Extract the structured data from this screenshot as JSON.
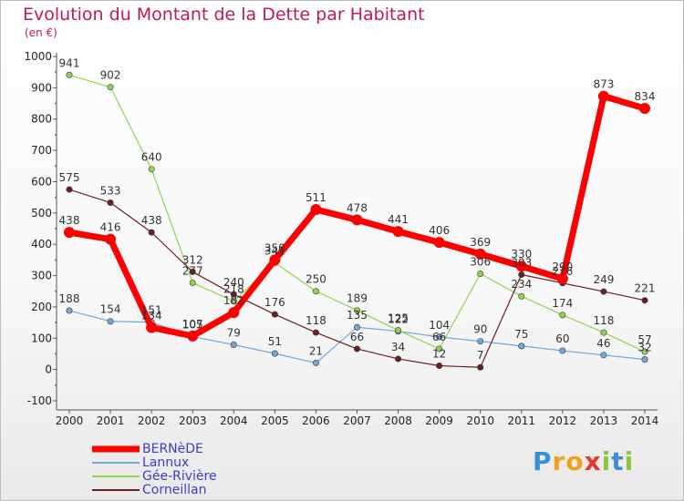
{
  "chart_data": {
    "type": "line",
    "title": "Evolution du Montant de la Dette par Habitant",
    "ylabel": "(en €)",
    "x": [
      "2000",
      "2001",
      "2002",
      "2003",
      "2004",
      "2005",
      "2006",
      "2007",
      "2008",
      "2009",
      "2010",
      "2011",
      "2012",
      "2013",
      "2014"
    ],
    "yticks": [
      "-100",
      "0",
      "100",
      "200",
      "300",
      "400",
      "500",
      "600",
      "700",
      "800",
      "900",
      "1000"
    ],
    "ylim": [
      -100,
      1000
    ],
    "grid": false,
    "legend_position": "bottom-left",
    "series": [
      {
        "name": "BERNèDE",
        "color": "#ff0000",
        "values": [
          438,
          416,
          134,
          107,
          182,
          350,
          511,
          478,
          441,
          406,
          369,
          330,
          290,
          873,
          834
        ],
        "labels": [
          "438",
          "416",
          "134",
          "107",
          "182",
          "350",
          "511",
          "478",
          "441",
          "406",
          "369",
          "330",
          "290",
          "873",
          "834"
        ]
      },
      {
        "name": "Lannux",
        "color": "#6fa8dc",
        "values": [
          188,
          154,
          151,
          105,
          79,
          51,
          21,
          135,
          122,
          104,
          90,
          75,
          60,
          46,
          32
        ],
        "labels": [
          "188",
          "154",
          "151",
          "105",
          "79",
          "51",
          "21",
          "135",
          "122",
          "104",
          "90",
          "75",
          "60",
          "46",
          "32"
        ]
      },
      {
        "name": "Gée-Rivière",
        "color": "#8fd44e",
        "values": [
          941,
          902,
          640,
          277,
          218,
          341,
          250,
          189,
          125,
          66,
          306,
          234,
          174,
          118,
          57
        ],
        "labels": [
          "941",
          "902",
          "640",
          "277",
          "218",
          "341",
          "250",
          "189",
          "125",
          "66",
          "306",
          "234",
          "174",
          "118",
          "57"
        ]
      },
      {
        "name": "Corneillan",
        "color": "#6b1f22",
        "values": [
          575,
          533,
          438,
          312,
          240,
          176,
          118,
          66,
          34,
          12,
          7,
          303,
          276,
          249,
          221
        ],
        "labels": [
          "575",
          "533",
          "438",
          "312",
          "240",
          "176",
          "118",
          "66",
          "34",
          "12",
          "7",
          "303",
          "276",
          "249",
          "221"
        ]
      }
    ]
  },
  "branding": {
    "logo_text": "Proxiti",
    "logo_letters": [
      {
        "ch": "P",
        "color": "#3a8fd6"
      },
      {
        "ch": "r",
        "color": "#f0a11c"
      },
      {
        "ch": "o",
        "color": "#f0a11c"
      },
      {
        "ch": "x",
        "color": "#e23b2e"
      },
      {
        "ch": "i",
        "color": "#8cc63f"
      },
      {
        "ch": "t",
        "color": "#3a8fd6"
      },
      {
        "ch": "i",
        "color": "#8cc63f"
      }
    ]
  }
}
